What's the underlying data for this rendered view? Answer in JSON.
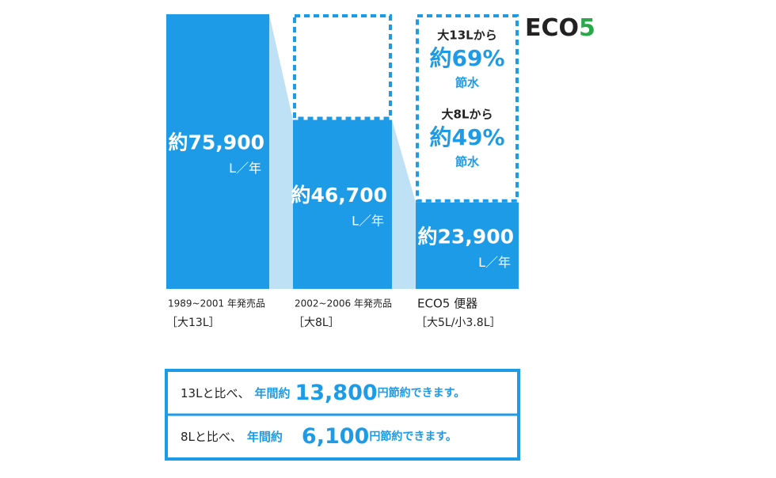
{
  "chart_data": {
    "type": "bar",
    "logo": [
      "ECO",
      "5"
    ],
    "categories": [
      "1989~2001 年発売品",
      "2002~2006 年発売品",
      "ECO5 便器"
    ],
    "capacity_labels": [
      "［大13L］",
      "［大8L］",
      "［大5L/小3.8L］"
    ],
    "values": [
      75900,
      46700,
      23900
    ],
    "value_labels": [
      "約75,900",
      "約46,700",
      "約23,900"
    ],
    "unit": "L／年",
    "color": "#1e9be6",
    "connector_color": "#bfe1f6",
    "savings": [
      {
        "from": "大13Lから",
        "amount": "約69%",
        "note": "節水"
      },
      {
        "from": "大8Lから",
        "amount": "約49%",
        "note": "節水"
      }
    ],
    "comparisons": [
      {
        "lead": "13Lと比べ、",
        "mid": "年間約",
        "amount": "13,800",
        "tail": "円節約できます。"
      },
      {
        "lead": "8Lと比べ、",
        "mid": "年間約",
        "amount": "6,100",
        "tail": "円節約できます。"
      }
    ]
  }
}
